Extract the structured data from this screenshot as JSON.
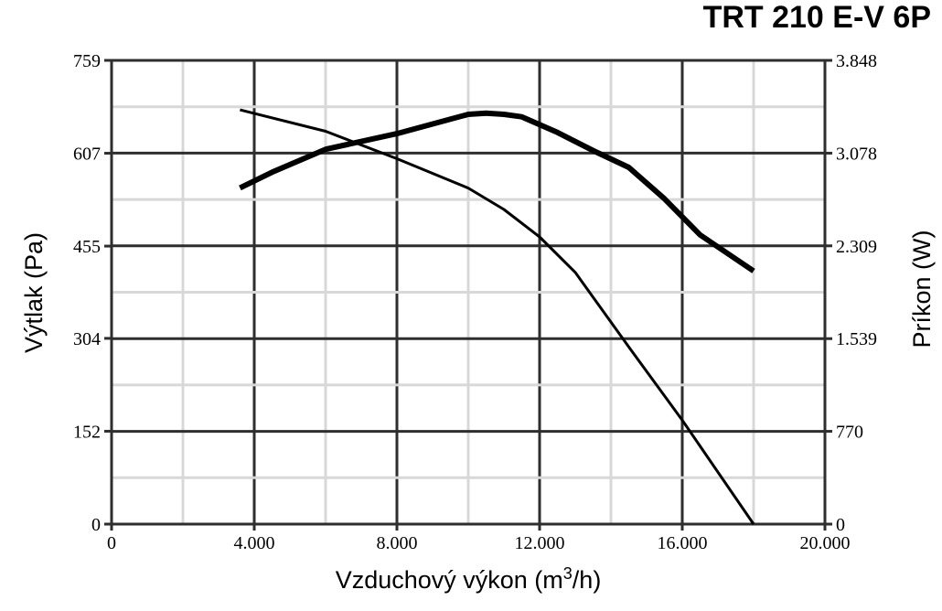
{
  "chart_data": {
    "type": "line",
    "title": "TRT 210 E-V 6P",
    "xlabel": "Vzduchový výkon (m",
    "xlabel_sup": "3",
    "xlabel_end": "/h)",
    "ylabel": "Výtlak (Pa)",
    "y2label": "Príkon (W)",
    "xlim": [
      0,
      20000
    ],
    "ylim": [
      0,
      759
    ],
    "y2lim": [
      0,
      3848
    ],
    "x_ticks": [
      {
        "value": 0,
        "label": "0"
      },
      {
        "value": 4000,
        "label": "4.000"
      },
      {
        "value": 8000,
        "label": "8.000"
      },
      {
        "value": 12000,
        "label": "12.000"
      },
      {
        "value": 16000,
        "label": "16.000"
      },
      {
        "value": 20000,
        "label": "20.000"
      }
    ],
    "y_ticks": [
      {
        "value": 0,
        "label": "0"
      },
      {
        "value": 152,
        "label": "152"
      },
      {
        "value": 304,
        "label": "304"
      },
      {
        "value": 455,
        "label": "455"
      },
      {
        "value": 607,
        "label": "607"
      },
      {
        "value": 759,
        "label": "759"
      }
    ],
    "y2_ticks": [
      {
        "value": 0,
        "label": "0"
      },
      {
        "value": 770,
        "label": "770"
      },
      {
        "value": 1539,
        "label": "1.539"
      },
      {
        "value": 2309,
        "label": "2.309"
      },
      {
        "value": 3078,
        "label": "3.078"
      },
      {
        "value": 3848,
        "label": "3.848"
      }
    ],
    "grid": true,
    "series": [
      {
        "axis": "left",
        "stroke": "thin",
        "points": [
          [
            3600,
            678
          ],
          [
            6000,
            643
          ],
          [
            8000,
            598
          ],
          [
            10000,
            550
          ],
          [
            11000,
            515
          ],
          [
            12000,
            470
          ],
          [
            13000,
            412
          ],
          [
            14500,
            290
          ],
          [
            16000,
            170
          ],
          [
            18000,
            0
          ]
        ]
      },
      {
        "axis": "right",
        "stroke": "bold",
        "points": [
          [
            3600,
            2790
          ],
          [
            4500,
            2920
          ],
          [
            6000,
            3110
          ],
          [
            8000,
            3240
          ],
          [
            10000,
            3400
          ],
          [
            10500,
            3410
          ],
          [
            11000,
            3400
          ],
          [
            11500,
            3380
          ],
          [
            12500,
            3250
          ],
          [
            13500,
            3100
          ],
          [
            14500,
            2960
          ],
          [
            15500,
            2700
          ],
          [
            16500,
            2400
          ],
          [
            18000,
            2100
          ]
        ]
      }
    ]
  }
}
